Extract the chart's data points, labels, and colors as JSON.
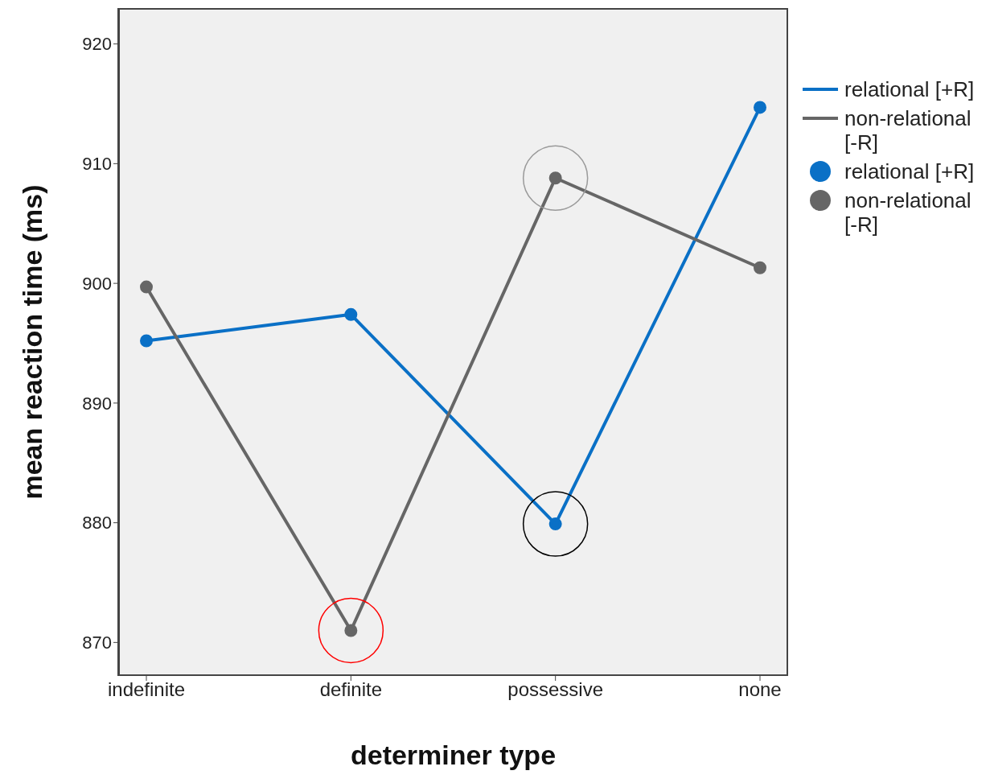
{
  "chart_data": {
    "type": "line",
    "xlabel": "determiner type",
    "ylabel": "mean reaction time (ms)",
    "categories": [
      "indefinite",
      "definite",
      "possessive",
      "none"
    ],
    "series": [
      {
        "name": "relational [+R]",
        "color": "#0a70c6",
        "values": [
          895.2,
          897.4,
          879.9,
          914.7
        ]
      },
      {
        "name": "non-relational [-R]",
        "color": "#666666",
        "values": [
          899.7,
          871.0,
          908.8,
          901.3
        ]
      }
    ],
    "ylim": [
      867.2,
      923
    ],
    "yticks": [
      870,
      880,
      890,
      900,
      910,
      920
    ],
    "legend": "right",
    "marker": "circle",
    "line_style": "solid"
  }
}
